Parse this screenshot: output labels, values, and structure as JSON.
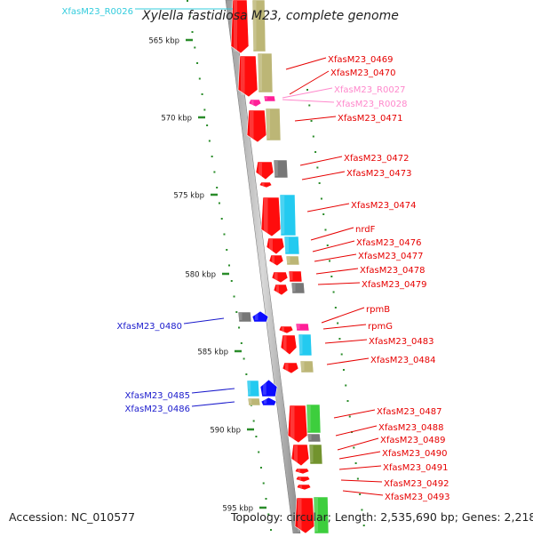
{
  "title": "Xylella fastidiosa M23, complete genome",
  "footer": {
    "accession": "Accession: NC_010577",
    "summary": "Topology: circular; Length: 2,535,690 bp; Genes: 2,218"
  },
  "colors": {
    "red_gene": "#ff0000",
    "olive": "#b9b36f",
    "cyan": "#18c8f0",
    "blue": "#0000ff",
    "grey": "#707070",
    "green": "#33cc33",
    "dark_green": "#6b8e23",
    "pink": "#ff1493",
    "tick_green": "#2a8c2a",
    "label_red": "#e60000",
    "label_blue": "#1a1acc",
    "label_cyan": "#33ccdd",
    "label_pink": "#ff88cc"
  },
  "scale": {
    "ticks": [
      {
        "label": "565 kbp"
      },
      {
        "label": "570 kbp"
      },
      {
        "label": "575 kbp"
      },
      {
        "label": "580 kbp"
      },
      {
        "label": "585 kbp"
      },
      {
        "label": "590 kbp"
      },
      {
        "label": "595 kbp"
      }
    ]
  },
  "labels": [
    {
      "text": "XfasM23_R0026",
      "color": "label_cyan"
    },
    {
      "text": "XfasM23_0469",
      "color": "label_red"
    },
    {
      "text": "XfasM23_0470",
      "color": "label_red"
    },
    {
      "text": "XfasM23_R0027",
      "color": "label_pink"
    },
    {
      "text": "XfasM23_R0028",
      "color": "label_pink"
    },
    {
      "text": "XfasM23_0471",
      "color": "label_red"
    },
    {
      "text": "XfasM23_0472",
      "color": "label_red"
    },
    {
      "text": "XfasM23_0473",
      "color": "label_red"
    },
    {
      "text": "XfasM23_0474",
      "color": "label_red"
    },
    {
      "text": "nrdF",
      "color": "label_red"
    },
    {
      "text": "XfasM23_0476",
      "color": "label_red"
    },
    {
      "text": "XfasM23_0477",
      "color": "label_red"
    },
    {
      "text": "XfasM23_0478",
      "color": "label_red"
    },
    {
      "text": "XfasM23_0479",
      "color": "label_red"
    },
    {
      "text": "XfasM23_0480",
      "color": "label_blue"
    },
    {
      "text": "rpmB",
      "color": "label_red"
    },
    {
      "text": "rpmG",
      "color": "label_red"
    },
    {
      "text": "XfasM23_0483",
      "color": "label_red"
    },
    {
      "text": "XfasM23_0484",
      "color": "label_red"
    },
    {
      "text": "XfasM23_0485",
      "color": "label_blue"
    },
    {
      "text": "XfasM23_0486",
      "color": "label_blue"
    },
    {
      "text": "XfasM23_0487",
      "color": "label_red"
    },
    {
      "text": "XfasM23_0488",
      "color": "label_red"
    },
    {
      "text": "XfasM23_0489",
      "color": "label_red"
    },
    {
      "text": "XfasM23_0490",
      "color": "label_red"
    },
    {
      "text": "XfasM23_0491",
      "color": "label_red"
    },
    {
      "text": "XfasM23_0492",
      "color": "label_red"
    },
    {
      "text": "XfasM23_0493",
      "color": "label_red"
    }
  ]
}
